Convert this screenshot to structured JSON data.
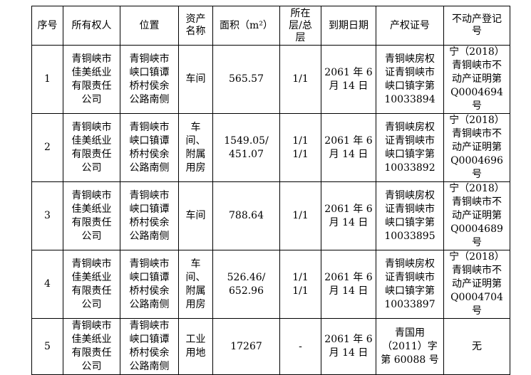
{
  "colors": {
    "background": "#ffffff",
    "border": "#000000",
    "text": "#000000"
  },
  "table": {
    "headers": [
      "序号",
      "所有权人",
      "位置",
      "资产\n名称",
      "面积（m²）",
      "所在\n层/总\n层",
      "到期日期",
      "产权证号",
      "不动产登记\n号"
    ],
    "rows": [
      [
        "1",
        "青铜峡市\n佳美纸业\n有限责任\n公司",
        "青铜峡市\n峡口镇谭\n桥村侯余\n公路南侧",
        "车间",
        "565.57",
        "1/1",
        "2061 年 6\n月 14 日",
        "青铜峡房权\n证青铜峡市\n峡口镇字第\n10033894",
        "宁（2018）\n青铜峡市不\n动产证明第\nQ0004694 号"
      ],
      [
        "2",
        "青铜峡市\n佳美纸业\n有限责任\n公司",
        "青铜峡市\n峡口镇谭\n桥村侯余\n公路南侧",
        "车\n间、\n附属\n用房",
        "1549.05/\n451.07",
        "1/1\n1/1",
        "2061 年 6\n月 14 日",
        "青铜峡房权\n证青铜峡市\n峡口镇字第\n10033892",
        "宁（2018）\n青铜峡市不\n动产证明第\nQ0004696 号"
      ],
      [
        "3",
        "青铜峡市\n佳美纸业\n有限责任\n公司",
        "青铜峡市\n峡口镇谭\n桥村侯余\n公路南侧",
        "车间",
        "788.64",
        "1/1",
        "2061 年 6\n月 14 日",
        "青铜峡房权\n证青铜峡市\n峡口镇字第\n10033895",
        "宁（2018）\n青铜峡市不\n动产证明第\nQ0004689 号"
      ],
      [
        "4",
        "青铜峡市\n佳美纸业\n有限责任\n公司",
        "青铜峡市\n峡口镇谭\n桥村侯余\n公路南侧",
        "车\n间、\n附属\n用房",
        "526.46/\n652.96",
        "1/1\n1/1",
        "2061 年 6\n月 14 日",
        "青铜峡房权\n证青铜峡市\n峡口镇字第\n10033897",
        "宁（2018）\n青铜峡市不\n动产证明第\nQ0004704 号"
      ],
      [
        "5",
        "青铜峡市\n佳美纸业\n有限责任\n公司",
        "青铜峡市\n峡口镇谭\n桥村侯余\n公路南侧",
        "工业\n用地",
        "17267",
        "-",
        "2061 年 6\n月 14 日",
        "青国用\n（2011）字\n第 60088 号",
        "无"
      ]
    ]
  }
}
